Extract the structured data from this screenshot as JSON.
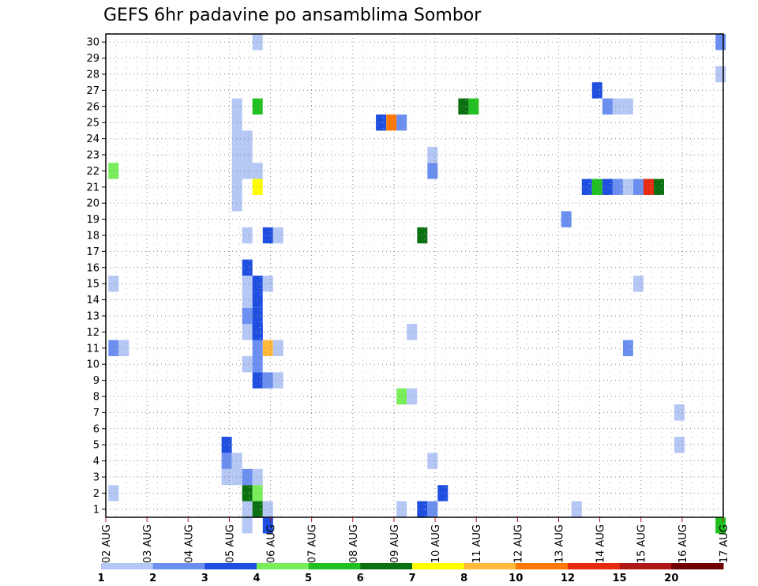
{
  "chart_data": {
    "type": "heatmap",
    "title": "GEFS 6hr padavine po ansamblima Sombor",
    "xlabel": "",
    "ylabel": "",
    "x_tick_labels": [
      "02 AUG",
      "03 AUG",
      "04 AUG",
      "05 AUG",
      "06 AUG",
      "07 AUG",
      "08 AUG",
      "09 AUG",
      "10 AUG",
      "11 AUG",
      "12 AUG",
      "13 AUG",
      "14 AUG",
      "15 AUG",
      "16 AUG",
      "17 AUG"
    ],
    "y_tick_labels": [
      "1",
      "2",
      "3",
      "4",
      "5",
      "6",
      "7",
      "8",
      "9",
      "10",
      "11",
      "12",
      "13",
      "14",
      "15",
      "16",
      "17",
      "18",
      "19",
      "20",
      "21",
      "22",
      "23",
      "24",
      "25",
      "26",
      "27",
      "28",
      "29",
      "30"
    ],
    "x_unit": "6-hour step from 02 AUG 00Z",
    "xlim": [
      0,
      60
    ],
    "ylim": [
      1,
      30
    ],
    "grid": true,
    "colorbar": {
      "levels": [
        "1",
        "2",
        "3",
        "4",
        "5",
        "6",
        "7",
        "8",
        "10",
        "12",
        "15",
        "20"
      ],
      "colors": [
        "#b4c7f5",
        "#6b8ff0",
        "#1f4fe0",
        "#78ee5a",
        "#20c020",
        "#0a7010",
        "#ffff00",
        "#ffb838",
        "#ff7800",
        "#e82a10",
        "#b01818",
        "#700000"
      ]
    },
    "cells": [
      {
        "x": 0.75,
        "y": 2,
        "v": 1
      },
      {
        "x": 0.75,
        "y": 11,
        "v": 2
      },
      {
        "x": 0.75,
        "y": 15,
        "v": 1
      },
      {
        "x": 0.75,
        "y": 22,
        "v": 4
      },
      {
        "x": 1.75,
        "y": 11,
        "v": 1
      },
      {
        "x": 11.75,
        "y": 3,
        "v": 1
      },
      {
        "x": 11.75,
        "y": 4,
        "v": 2
      },
      {
        "x": 11.75,
        "y": 5,
        "v": 3
      },
      {
        "x": 12.75,
        "y": 3,
        "v": 1
      },
      {
        "x": 12.75,
        "y": 4,
        "v": 1
      },
      {
        "x": 12.75,
        "y": 20,
        "v": 1
      },
      {
        "x": 12.75,
        "y": 21,
        "v": 1
      },
      {
        "x": 12.75,
        "y": 22,
        "v": 1
      },
      {
        "x": 12.75,
        "y": 23,
        "v": 1
      },
      {
        "x": 12.75,
        "y": 24,
        "v": 1
      },
      {
        "x": 12.75,
        "y": 25,
        "v": 1
      },
      {
        "x": 12.75,
        "y": 26,
        "v": 1
      },
      {
        "x": 13.75,
        "y": 0,
        "v": 1
      },
      {
        "x": 13.75,
        "y": 1,
        "v": 1
      },
      {
        "x": 13.75,
        "y": 2,
        "v": 6
      },
      {
        "x": 13.75,
        "y": 3,
        "v": 2
      },
      {
        "x": 13.75,
        "y": 10,
        "v": 1
      },
      {
        "x": 13.75,
        "y": 12,
        "v": 1
      },
      {
        "x": 13.75,
        "y": 13,
        "v": 2
      },
      {
        "x": 13.75,
        "y": 14,
        "v": 1
      },
      {
        "x": 13.75,
        "y": 15,
        "v": 1
      },
      {
        "x": 13.75,
        "y": 16,
        "v": 3
      },
      {
        "x": 13.75,
        "y": 18,
        "v": 1
      },
      {
        "x": 13.75,
        "y": 22,
        "v": 1
      },
      {
        "x": 13.75,
        "y": 23,
        "v": 1
      },
      {
        "x": 13.75,
        "y": 24,
        "v": 1
      },
      {
        "x": 14.75,
        "y": 2,
        "v": 4
      },
      {
        "x": 14.75,
        "y": 1,
        "v": 6
      },
      {
        "x": 14.75,
        "y": 3,
        "v": 1
      },
      {
        "x": 14.75,
        "y": 9,
        "v": 3
      },
      {
        "x": 14.75,
        "y": 10,
        "v": 2
      },
      {
        "x": 14.75,
        "y": 11,
        "v": 2
      },
      {
        "x": 14.75,
        "y": 13,
        "v": 3
      },
      {
        "x": 14.75,
        "y": 12,
        "v": 3
      },
      {
        "x": 14.75,
        "y": 12,
        "v": 3
      },
      {
        "x": 14.75,
        "y": 12,
        "v": 3
      },
      {
        "x": 14.75,
        "y": 14,
        "v": 3
      },
      {
        "x": 14.75,
        "y": 15,
        "v": 3
      },
      {
        "x": 14.75,
        "y": 22,
        "v": 1
      },
      {
        "x": 14.75,
        "y": 21,
        "v": 7
      },
      {
        "x": 14.75,
        "y": 26,
        "v": 5
      },
      {
        "x": 14.75,
        "y": 30,
        "v": 1
      },
      {
        "x": 15.75,
        "y": 0,
        "v": 3
      },
      {
        "x": 15.75,
        "y": 1,
        "v": 1
      },
      {
        "x": 15.75,
        "y": 9,
        "v": 2
      },
      {
        "x": 15.75,
        "y": 11,
        "v": 8
      },
      {
        "x": 15.75,
        "y": 15,
        "v": 1
      },
      {
        "x": 15.75,
        "y": 18,
        "v": 3
      },
      {
        "x": 16.75,
        "y": 9,
        "v": 1
      },
      {
        "x": 16.75,
        "y": 11,
        "v": 1
      },
      {
        "x": 16.75,
        "y": 18,
        "v": 1
      },
      {
        "x": 26.75,
        "y": 25,
        "v": 3
      },
      {
        "x": 27.75,
        "y": 25,
        "v": 10
      },
      {
        "x": 28.75,
        "y": 25,
        "v": 2
      },
      {
        "x": 28.75,
        "y": 1,
        "v": 1
      },
      {
        "x": 28.75,
        "y": 8,
        "v": 4
      },
      {
        "x": 29.75,
        "y": 8,
        "v": 1
      },
      {
        "x": 29.75,
        "y": 12,
        "v": 1
      },
      {
        "x": 30.75,
        "y": 1,
        "v": 3
      },
      {
        "x": 30.75,
        "y": 18,
        "v": 6
      },
      {
        "x": 31.75,
        "y": 1,
        "v": 2
      },
      {
        "x": 31.75,
        "y": 4,
        "v": 1
      },
      {
        "x": 31.75,
        "y": 22,
        "v": 2
      },
      {
        "x": 31.75,
        "y": 23,
        "v": 1
      },
      {
        "x": 32.75,
        "y": 2,
        "v": 3
      },
      {
        "x": 34.75,
        "y": 26,
        "v": 6
      },
      {
        "x": 35.75,
        "y": 26,
        "v": 5
      },
      {
        "x": 44.75,
        "y": 19,
        "v": 2
      },
      {
        "x": 45.75,
        "y": 1,
        "v": 1
      },
      {
        "x": 46.75,
        "y": 21,
        "v": 3
      },
      {
        "x": 47.75,
        "y": 21,
        "v": 5
      },
      {
        "x": 47.75,
        "y": 27,
        "v": 3
      },
      {
        "x": 48.75,
        "y": 21,
        "v": 3
      },
      {
        "x": 48.75,
        "y": 26,
        "v": 2
      },
      {
        "x": 49.75,
        "y": 21,
        "v": 2
      },
      {
        "x": 49.75,
        "y": 26,
        "v": 1
      },
      {
        "x": 50.75,
        "y": 11,
        "v": 2
      },
      {
        "x": 50.75,
        "y": 21,
        "v": 1
      },
      {
        "x": 50.75,
        "y": 26,
        "v": 1
      },
      {
        "x": 51.75,
        "y": 15,
        "v": 1
      },
      {
        "x": 51.75,
        "y": 21,
        "v": 2
      },
      {
        "x": 52.75,
        "y": 21,
        "v": 12
      },
      {
        "x": 53.75,
        "y": 21,
        "v": 6
      },
      {
        "x": 55.75,
        "y": 5,
        "v": 1
      },
      {
        "x": 55.75,
        "y": 7,
        "v": 1
      },
      {
        "x": 59.75,
        "y": 0,
        "v": 5
      },
      {
        "x": 59.75,
        "y": 28,
        "v": 1
      },
      {
        "x": 59.75,
        "y": 30,
        "v": 2
      }
    ]
  }
}
